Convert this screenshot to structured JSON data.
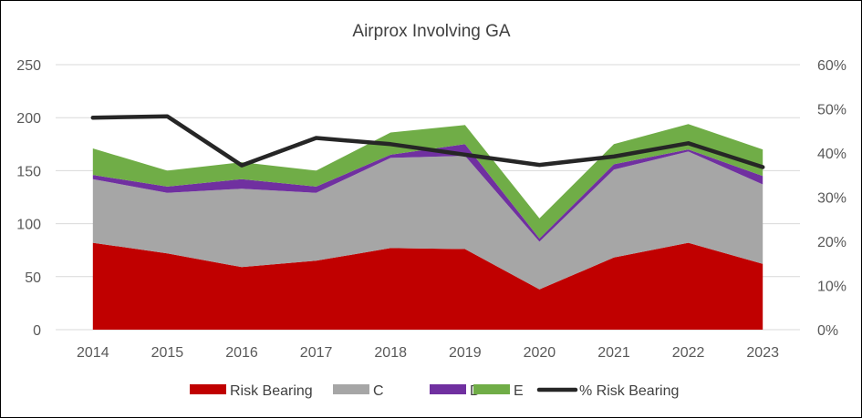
{
  "chart_data": {
    "type": "area",
    "stacked": true,
    "title": "Airprox Involving GA",
    "categories": [
      "2014",
      "2015",
      "2016",
      "2017",
      "2018",
      "2019",
      "2020",
      "2021",
      "2022",
      "2023"
    ],
    "series": [
      {
        "name": "Risk Bearing",
        "color": "#C00000",
        "values": [
          82,
          72,
          59,
          65,
          77,
          76,
          38,
          68,
          82,
          62
        ]
      },
      {
        "name": "C",
        "color": "#A6A6A6",
        "values": [
          60,
          57,
          74,
          64,
          85,
          88,
          45,
          83,
          86,
          75
        ]
      },
      {
        "name": "D",
        "color": "#7030A0",
        "values": [
          4,
          6,
          9,
          6,
          3,
          11,
          3,
          5,
          2,
          8
        ]
      },
      {
        "name": "E",
        "color": "#70AD47",
        "values": [
          25,
          15,
          16,
          15,
          21,
          18,
          19,
          19,
          24,
          25
        ]
      }
    ],
    "line_series": {
      "name": "% Risk Bearing",
      "color": "#262626",
      "axis": "right",
      "values": [
        0.48,
        0.483,
        0.372,
        0.434,
        0.42,
        0.396,
        0.373,
        0.392,
        0.422,
        0.368
      ]
    },
    "ylim": [
      0,
      250
    ],
    "yticks": [
      "0",
      "50",
      "100",
      "150",
      "200",
      "250"
    ],
    "y2lim": [
      0,
      0.6
    ],
    "y2ticks": [
      "0%",
      "10%",
      "20%",
      "30%",
      "40%",
      "50%",
      "60%"
    ],
    "grid": true,
    "legend": "bottom"
  }
}
